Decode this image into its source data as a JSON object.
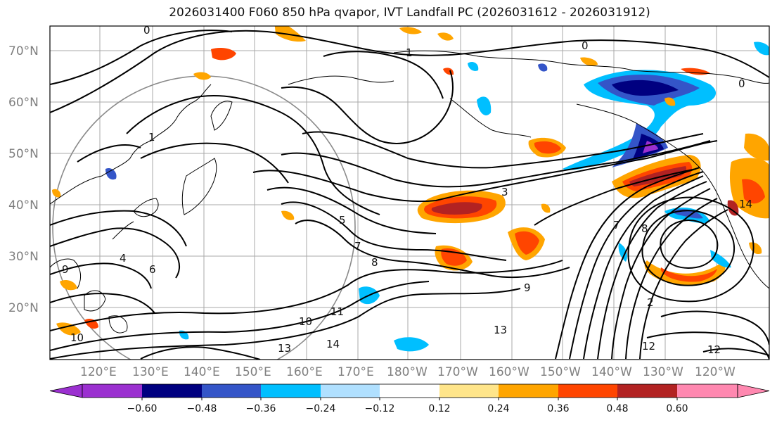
{
  "title": "2026031400 F060 850 hPa qvapor, IVT Landfall PC (2026031612 - 2026031912)",
  "lat_labels": [
    "70°N",
    "60°N",
    "50°N",
    "40°N",
    "30°N",
    "20°N"
  ],
  "lon_labels": [
    "120°E",
    "130°E",
    "140°E",
    "150°E",
    "160°E",
    "170°E",
    "180°W",
    "170°W",
    "160°W",
    "150°W",
    "140°W",
    "130°W",
    "120°W"
  ],
  "colorbar": {
    "colors": [
      "#9b30d0",
      "#000080",
      "#3455c8",
      "#00bfff",
      "#b0e0ff",
      "#ffffff",
      "#ffe58a",
      "#ffa500",
      "#ff4500",
      "#b22222",
      "#ff88b0"
    ],
    "tick_labels": [
      "−0.60",
      "−0.48",
      "−0.36",
      "−0.24",
      "−0.12",
      "0.12",
      "0.24",
      "0.36",
      "0.48",
      "0.60"
    ]
  },
  "contour_labels": [
    {
      "text": "0"
    },
    {
      "text": "1"
    },
    {
      "text": "0"
    },
    {
      "text": "1"
    },
    {
      "text": "0"
    },
    {
      "text": "3"
    },
    {
      "text": "5"
    },
    {
      "text": "7"
    },
    {
      "text": "8"
    },
    {
      "text": "9"
    },
    {
      "text": "10"
    },
    {
      "text": "11"
    },
    {
      "text": "13"
    },
    {
      "text": "14"
    },
    {
      "text": "13"
    },
    {
      "text": "12"
    },
    {
      "text": "12"
    },
    {
      "text": "14"
    },
    {
      "text": "4"
    },
    {
      "text": "6"
    },
    {
      "text": "7"
    },
    {
      "text": "8"
    },
    {
      "text": "10"
    },
    {
      "text": "2"
    },
    {
      "text": "9"
    }
  ]
}
